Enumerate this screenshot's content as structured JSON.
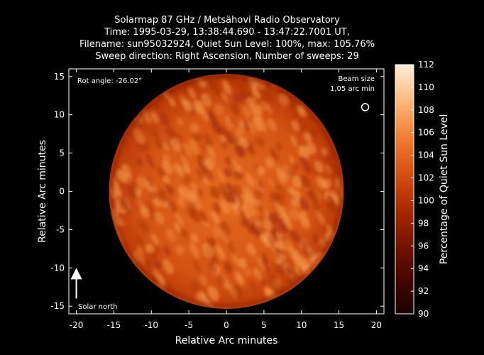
{
  "title_lines": [
    "Solarmap 87 GHz / Metsähovi Radio Observatory",
    "Time: 1995-03-29, 13:38:44.690 - 13:47:22.7001 UT,",
    "Filename: sun95032924, Quiet Sun Level: 100%, max: 105.76%",
    "Sweep direction: Right Ascension, Number of sweeps: 29"
  ],
  "annotations": {
    "rot_angle": "Rot angle: -26.02°",
    "beam_size_line1": "Beam size",
    "beam_size_line2": "1,05 arc min",
    "solar_north": "Solar north"
  },
  "chart_data": {
    "type": "heatmap",
    "xlabel": "Relative Arc minutes",
    "ylabel": "Relative Arc minutes",
    "xlim": [
      -21,
      21
    ],
    "ylim": [
      -16,
      16
    ],
    "x_ticks": [
      -20,
      -15,
      -10,
      -5,
      0,
      5,
      10,
      15,
      20
    ],
    "y_ticks": [
      -15,
      -10,
      -5,
      0,
      5,
      10,
      15
    ],
    "disk": {
      "center": [
        0,
        0
      ],
      "radius_arcmin": 15.5
    },
    "beam": {
      "center": [
        18.5,
        11
      ],
      "diameter_arcmin": 1.05
    },
    "solar_north_arrow": {
      "from": [
        -20,
        -14
      ],
      "to": [
        -20,
        -10
      ]
    },
    "colorbar": {
      "label": "Percentage of Quiet Sun Level",
      "range": [
        90,
        112
      ],
      "ticks": [
        90,
        92,
        94,
        96,
        98,
        100,
        102,
        104,
        106,
        108,
        110,
        112
      ]
    },
    "quiet_sun_level_percent": 100,
    "max_percent": 105.76
  },
  "colors": {
    "background": "#000000",
    "low": "#1a0000",
    "mid": "#c03a08",
    "high": "#ffeed8"
  }
}
